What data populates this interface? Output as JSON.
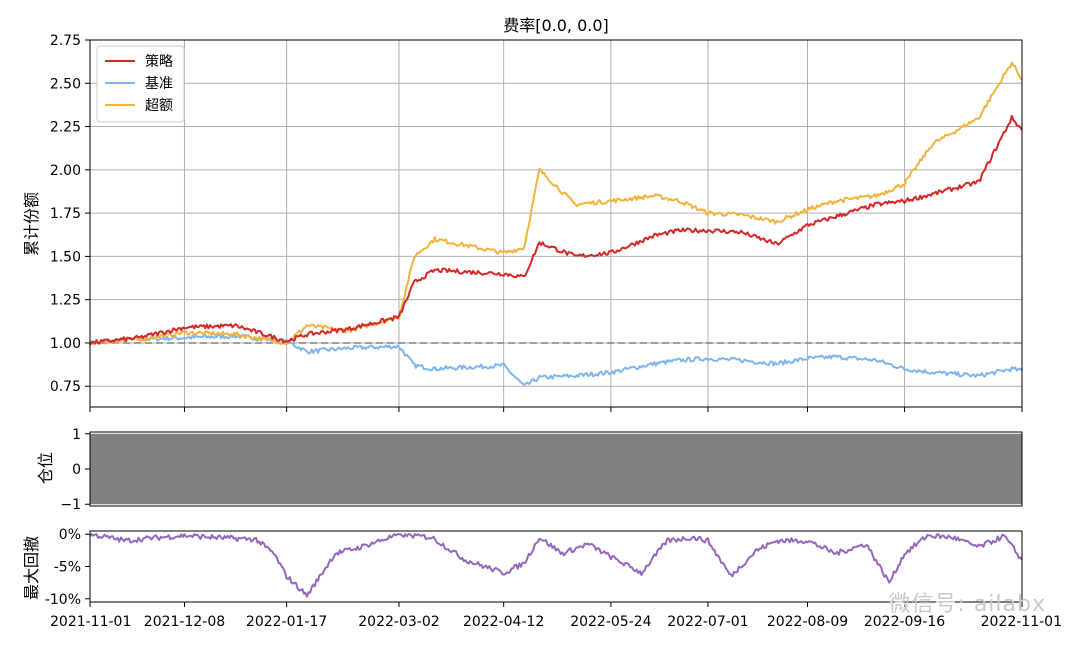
{
  "watermark": "微信号: ailabx",
  "chart_data": [
    {
      "type": "line",
      "title": "费率[0.0, 0.0]",
      "ylabel": "累计份额",
      "ylim": [
        0.63,
        2.75
      ],
      "yticks": [
        "0.75",
        "1.00",
        "1.25",
        "1.50",
        "1.75",
        "2.00",
        "2.25",
        "2.50",
        "2.75"
      ],
      "grid": true,
      "legend": "top-left",
      "reference_line": 1.0,
      "x": [
        "2021-11-01",
        "2021-11-20",
        "2021-12-08",
        "2021-12-28",
        "2022-01-17",
        "2022-01-25",
        "2022-02-10",
        "2022-03-02",
        "2022-03-08",
        "2022-03-16",
        "2022-04-12",
        "2022-04-20",
        "2022-04-26",
        "2022-05-10",
        "2022-05-24",
        "2022-06-10",
        "2022-06-20",
        "2022-07-01",
        "2022-07-14",
        "2022-07-28",
        "2022-08-09",
        "2022-08-20",
        "2022-09-05",
        "2022-09-16",
        "2022-09-27",
        "2022-10-15",
        "2022-10-28",
        "2022-11-01"
      ],
      "series": [
        {
          "name": "策略",
          "color": "#d62728",
          "values": [
            1.0,
            1.03,
            1.09,
            1.1,
            1.01,
            1.05,
            1.08,
            1.15,
            1.35,
            1.42,
            1.4,
            1.38,
            1.58,
            1.5,
            1.52,
            1.62,
            1.65,
            1.65,
            1.64,
            1.57,
            1.68,
            1.73,
            1.8,
            1.82,
            1.86,
            1.93,
            2.3,
            2.23
          ]
        },
        {
          "name": "基准",
          "color": "#7eb5ec",
          "values": [
            1.0,
            1.02,
            1.03,
            1.04,
            1.01,
            0.95,
            0.97,
            0.98,
            0.87,
            0.85,
            0.87,
            0.75,
            0.8,
            0.81,
            0.83,
            0.88,
            0.9,
            0.91,
            0.9,
            0.88,
            0.91,
            0.92,
            0.9,
            0.85,
            0.83,
            0.81,
            0.85,
            0.84
          ]
        },
        {
          "name": "超额",
          "color": "#f2b33c",
          "values": [
            1.0,
            1.02,
            1.06,
            1.05,
            1.0,
            1.1,
            1.07,
            1.15,
            1.5,
            1.6,
            1.52,
            1.55,
            2.0,
            1.8,
            1.82,
            1.85,
            1.82,
            1.75,
            1.74,
            1.7,
            1.77,
            1.82,
            1.85,
            1.92,
            2.15,
            2.3,
            2.62,
            2.52
          ]
        }
      ]
    },
    {
      "type": "area",
      "ylabel": "仓位",
      "ylim": [
        -1.05,
        1.05
      ],
      "yticks": [
        "1",
        "0",
        "−1"
      ],
      "fill": "#808080",
      "x": [
        "2021-11-01",
        "2022-11-01"
      ],
      "series": [
        {
          "upper": [
            1,
            1
          ],
          "lower": [
            -1,
            -1
          ]
        }
      ]
    },
    {
      "type": "line",
      "ylabel": "最大回撤",
      "ylim": [
        -10.5,
        0.5
      ],
      "yticks": [
        "0%",
        "-5%",
        "-10%"
      ],
      "xticks": [
        "2021-11-01",
        "2021-12-08",
        "2022-01-17",
        "2022-03-02",
        "2022-04-12",
        "2022-05-24",
        "2022-07-01",
        "2022-08-09",
        "2022-09-16",
        "2022-11-01"
      ],
      "x": [
        "2021-11-01",
        "2021-11-15",
        "2021-11-25",
        "2021-12-08",
        "2021-12-20",
        "2022-01-05",
        "2022-01-12",
        "2022-01-17",
        "2022-01-25",
        "2022-02-05",
        "2022-02-15",
        "2022-03-02",
        "2022-03-15",
        "2022-03-28",
        "2022-04-12",
        "2022-04-20",
        "2022-04-26",
        "2022-05-05",
        "2022-05-15",
        "2022-05-24",
        "2022-06-05",
        "2022-06-15",
        "2022-06-25",
        "2022-07-01",
        "2022-07-10",
        "2022-07-20",
        "2022-07-28",
        "2022-08-09",
        "2022-08-20",
        "2022-09-01",
        "2022-09-10",
        "2022-09-16",
        "2022-09-25",
        "2022-10-05",
        "2022-10-15",
        "2022-10-25",
        "2022-11-01"
      ],
      "series": [
        {
          "color": "#9467bd",
          "values": [
            0.0,
            -1.0,
            -0.6,
            -0.2,
            -0.5,
            -0.8,
            -3.0,
            -6.5,
            -9.5,
            -3.0,
            -2.0,
            0.0,
            -0.5,
            -4.0,
            -6.0,
            -4.5,
            -0.5,
            -3.0,
            -1.5,
            -3.5,
            -6.0,
            -1.0,
            -0.5,
            -1.0,
            -6.5,
            -2.5,
            -1.0,
            -1.0,
            -3.0,
            -1.5,
            -7.5,
            -3.0,
            -0.2,
            -0.5,
            -2.0,
            -0.3,
            -4.0
          ]
        }
      ]
    }
  ]
}
